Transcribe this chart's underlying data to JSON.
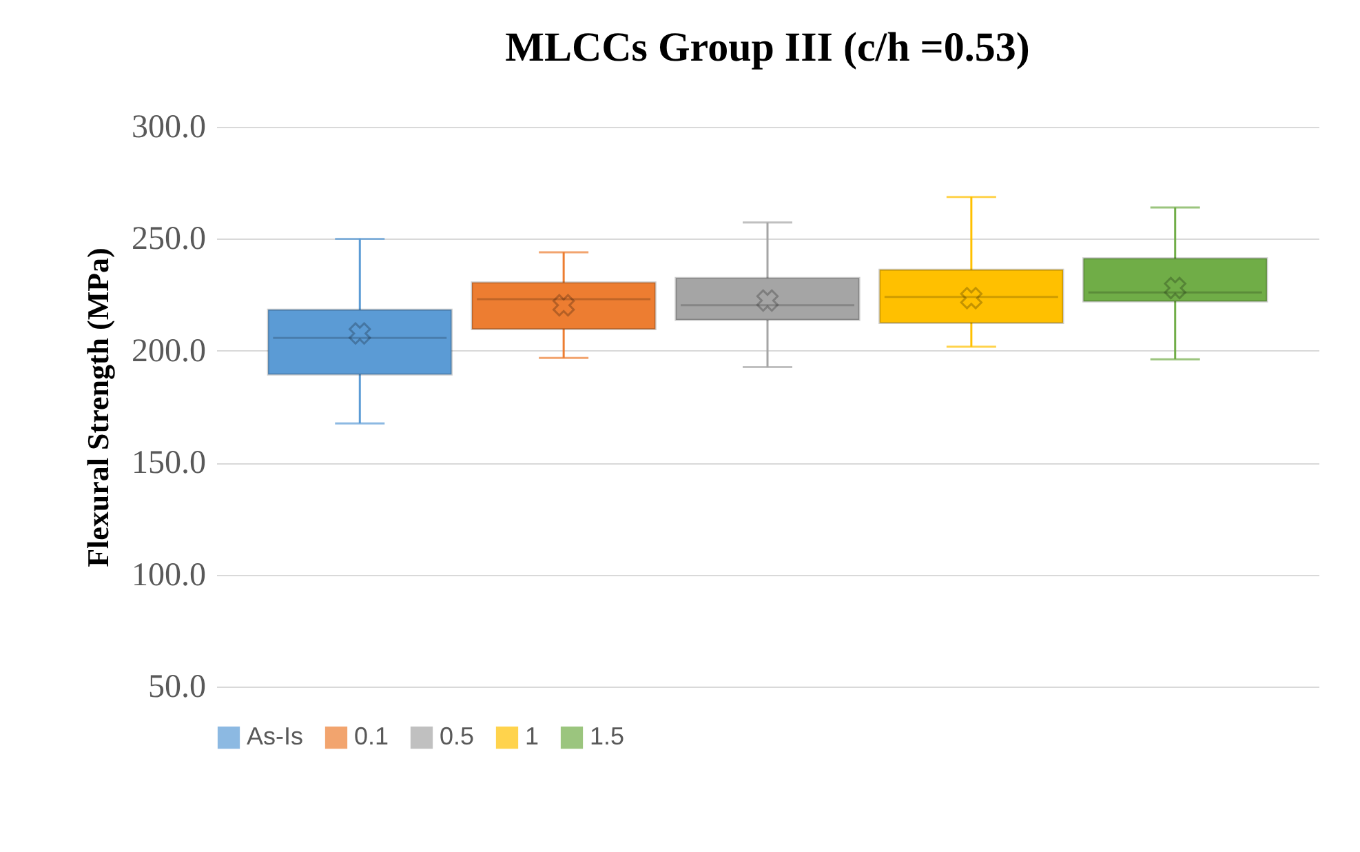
{
  "chart_data": {
    "type": "box",
    "title": "MLCCs Group III  (c/h =0.53)",
    "ylabel": "Flexural Strength (MPa)",
    "categories": [
      null
    ],
    "ylim": [
      50,
      300
    ],
    "yticks": [
      {
        "value": 50,
        "label": "50.0"
      },
      {
        "value": 100,
        "label": "100.0"
      },
      {
        "value": 150,
        "label": "150.0"
      },
      {
        "value": 200,
        "label": "200.0"
      },
      {
        "value": 250,
        "label": "250.0"
      },
      {
        "value": 300,
        "label": "300.0"
      }
    ],
    "grid": "y",
    "legend": "bottom",
    "marker": "cross",
    "series": [
      {
        "name": "As-Is",
        "color": "#5b9bd5",
        "boxes": [
          {
            "low": 167.5,
            "q1": 189.4,
            "median": 205.7,
            "q3": 218.3,
            "high": 250,
            "mean": 207.7
          }
        ]
      },
      {
        "name": "0.1",
        "color": "#ed7d31",
        "boxes": [
          {
            "low": 196.8,
            "q1": 209.6,
            "median": 223,
            "q3": 230.5,
            "high": 244,
            "mean": 220.3
          }
        ]
      },
      {
        "name": "0.5",
        "color": "#a5a5a5",
        "boxes": [
          {
            "low": 192.7,
            "q1": 213.8,
            "median": 220.3,
            "q3": 232.5,
            "high": 257.3,
            "mean": 222.4
          }
        ]
      },
      {
        "name": "1",
        "color": "#ffc000",
        "boxes": [
          {
            "low": 201.8,
            "q1": 212.4,
            "median": 224,
            "q3": 236.2,
            "high": 268.7,
            "mean": 223.5
          }
        ]
      },
      {
        "name": "1.5",
        "color": "#70ad47",
        "boxes": [
          {
            "low": 196.2,
            "q1": 222,
            "median": 226,
            "q3": 241.3,
            "high": 264,
            "mean": 228
          }
        ]
      }
    ]
  }
}
